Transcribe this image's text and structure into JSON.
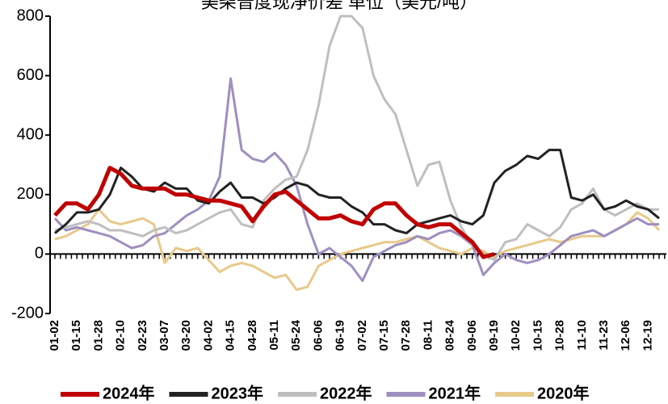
{
  "chart_data": {
    "type": "line",
    "title": "美柴普度现净价差 单位（美元/吨）",
    "categories": [
      "01-02",
      null,
      "01-15",
      null,
      "01-28",
      null,
      "02-10",
      null,
      "02-23",
      null,
      "03-07",
      null,
      "03-20",
      null,
      "04-02",
      null,
      "04-15",
      null,
      "04-28",
      null,
      "05-11",
      null,
      "05-24",
      null,
      "06-06",
      null,
      "06-19",
      null,
      "07-02",
      null,
      "07-15",
      null,
      "07-28",
      null,
      "08-11",
      null,
      "08-24",
      null,
      "09-06",
      null,
      "09-19",
      null,
      "10-02",
      null,
      "10-15",
      null,
      "10-28",
      null,
      "11-10",
      null,
      "11-23",
      null,
      "12-06",
      null,
      "12-19",
      null
    ],
    "ylim": [
      -200,
      800
    ],
    "yticks": [
      -200,
      0,
      200,
      400,
      600,
      800
    ],
    "grid": false,
    "series": [
      {
        "name": "2024年",
        "color": "#c00000",
        "values": [
          130,
          170,
          170,
          150,
          200,
          290,
          270,
          230,
          220,
          220,
          220,
          200,
          200,
          190,
          180,
          180,
          170,
          160,
          110,
          160,
          200,
          210,
          180,
          150,
          120,
          120,
          130,
          110,
          100,
          150,
          170,
          170,
          130,
          100,
          90,
          100,
          100,
          70,
          40,
          -10,
          0,
          null,
          null,
          null,
          null,
          null,
          null,
          null,
          null,
          null,
          null,
          null,
          null,
          null,
          null,
          null
        ]
      },
      {
        "name": "2023年",
        "color": "#222222",
        "values": [
          70,
          100,
          140,
          140,
          150,
          200,
          290,
          260,
          220,
          210,
          240,
          220,
          220,
          180,
          170,
          210,
          240,
          190,
          190,
          170,
          190,
          220,
          240,
          230,
          200,
          190,
          190,
          160,
          140,
          100,
          100,
          80,
          70,
          100,
          110,
          120,
          130,
          110,
          100,
          130,
          240,
          280,
          300,
          330,
          320,
          350,
          350,
          190,
          180,
          200,
          150,
          160,
          180,
          160,
          150,
          120
        ]
      },
      {
        "name": "2022年",
        "color": "#bfbfbf",
        "values": [
          80,
          90,
          100,
          110,
          100,
          80,
          80,
          70,
          60,
          80,
          90,
          70,
          80,
          100,
          120,
          140,
          150,
          100,
          90,
          180,
          220,
          250,
          260,
          350,
          500,
          700,
          800,
          800,
          760,
          600,
          520,
          470,
          350,
          230,
          300,
          310,
          180,
          90,
          30,
          0,
          -20,
          40,
          50,
          100,
          80,
          60,
          90,
          150,
          170,
          220,
          150,
          130,
          150,
          170,
          150,
          150
        ]
      },
      {
        "name": "2021年",
        "color": "#9e8fc0",
        "values": [
          120,
          80,
          90,
          80,
          70,
          60,
          40,
          20,
          30,
          60,
          70,
          100,
          130,
          150,
          180,
          260,
          590,
          350,
          320,
          310,
          340,
          300,
          230,
          100,
          0,
          20,
          -10,
          -40,
          -90,
          -10,
          10,
          30,
          40,
          60,
          50,
          70,
          80,
          60,
          30,
          -70,
          -30,
          0,
          -20,
          -30,
          -20,
          0,
          30,
          60,
          70,
          80,
          60,
          80,
          100,
          120,
          100,
          100
        ]
      },
      {
        "name": "2020年",
        "color": "#e8c98a",
        "values": [
          50,
          60,
          80,
          100,
          150,
          110,
          100,
          110,
          120,
          100,
          -30,
          20,
          10,
          20,
          -20,
          -60,
          -40,
          -30,
          -40,
          -60,
          -80,
          -70,
          -120,
          -110,
          -40,
          -20,
          0,
          10,
          20,
          30,
          40,
          40,
          50,
          60,
          40,
          20,
          10,
          0,
          20,
          10,
          -10,
          10,
          20,
          30,
          40,
          50,
          40,
          50,
          60,
          60,
          60,
          80,
          100,
          140,
          120,
          80
        ]
      }
    ]
  }
}
